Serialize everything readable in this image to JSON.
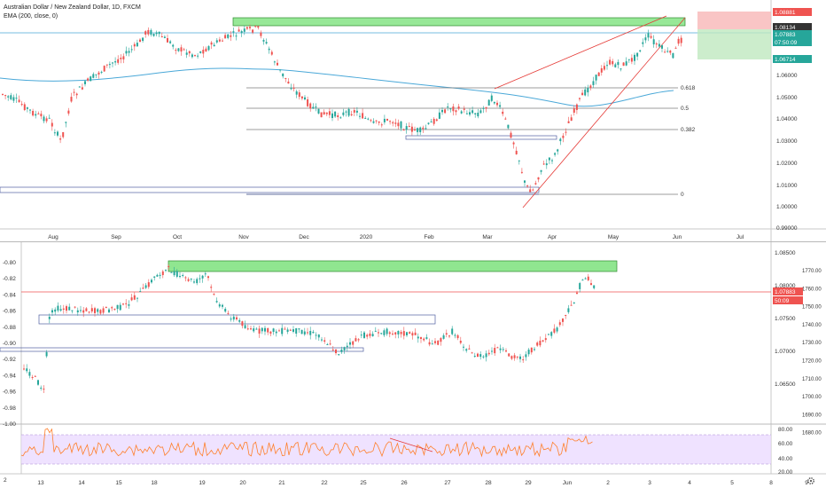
{
  "chart1": {
    "symbol_title": "Australian Dollar / New Zealand Dollar, 1D, FXCM",
    "indicator": "EMA (200, close, 0)",
    "price_axis": [
      "1.06000",
      "1.05000",
      "1.04000",
      "1.03000",
      "1.02000",
      "1.01000",
      "1.00000",
      "0.99000"
    ],
    "x_labels": [
      "Aug",
      "Sep",
      "Oct",
      "Nov",
      "Dec",
      "2020",
      "Feb",
      "Mar",
      "Apr",
      "May",
      "Jun",
      "Jul"
    ],
    "fib_labels": [
      "0.618",
      "0.5",
      "0.382",
      "0"
    ],
    "price_tags": [
      "1.08881",
      "1.08134",
      "1.07883",
      "07:50:09",
      "1.06714"
    ],
    "colors": {
      "up": "#26a69a",
      "down": "#ef5350",
      "ema": "#4aa8d8",
      "fib": "#7b7b7b",
      "trend": "#e53935",
      "zone": "#7de27d"
    }
  },
  "chart2": {
    "left_axis": [
      "-0.80",
      "-0.82",
      "-0.84",
      "-0.86",
      "-0.88",
      "-0.90",
      "-0.92",
      "-0.94",
      "-0.96",
      "-0.98",
      "-1.00"
    ],
    "mid_axis": [
      "1.08500",
      "1.08000",
      "1.07500",
      "1.07000",
      "1.06500"
    ],
    "right_axis": [
      "1770.00",
      "1760.00",
      "1750.00",
      "1740.00",
      "1730.00",
      "1720.00",
      "1710.00",
      "1700.00",
      "1690.00",
      "1680.00"
    ],
    "price_tags": [
      "1.07883",
      "50:09"
    ],
    "rsi_axis": [
      "80.00",
      "60.00",
      "40.00",
      "20.00"
    ],
    "x_labels": [
      "13",
      "14",
      "15",
      "18",
      "19",
      "20",
      "21",
      "22",
      "25",
      "26",
      "27",
      "28",
      "29",
      "Jun",
      "2",
      "3",
      "4",
      "5",
      "8",
      "9"
    ],
    "corner_left": "2",
    "corner_right_icon": "gear-icon"
  }
}
